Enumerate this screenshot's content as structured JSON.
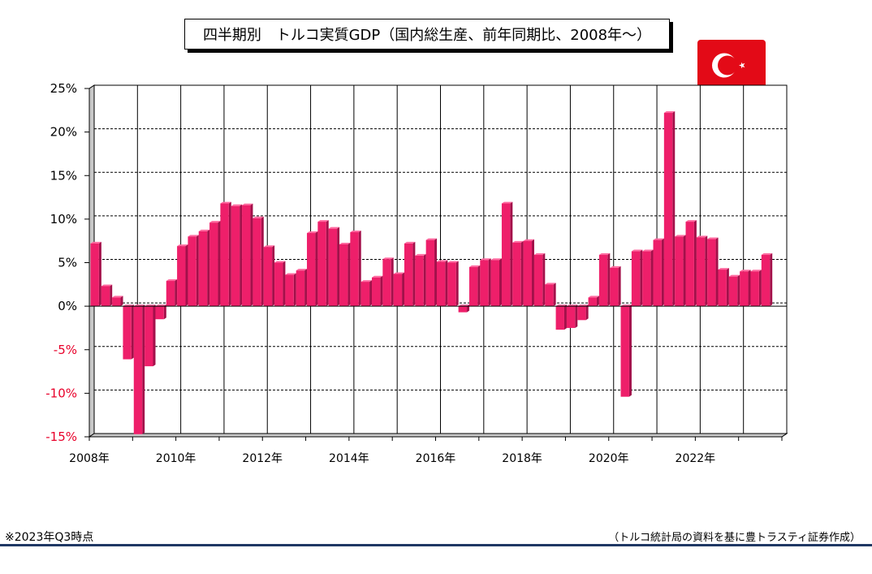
{
  "title": "四半期別　トルコ実質GDP（国内総生産、前年同期比、2008年～）",
  "flag_icon": "turkey-flag-icon",
  "note_left": "※2023年Q3時点",
  "note_right": "（トルコ統計局の資料を基に豊トラスティ証券作成）",
  "colors": {
    "bar": "#ee1f6a",
    "bar_side": "#a3104a",
    "bar_top": "#ff6aa0",
    "neg_label": "#e8002a",
    "flag": "#e30a17",
    "footer_line": "#1f3864"
  },
  "chart_data": {
    "type": "bar",
    "ylim": [
      -15,
      25
    ],
    "yticks": [
      25,
      20,
      15,
      10,
      5,
      0,
      -5,
      -10,
      -15
    ],
    "ytick_labels": [
      "25%",
      "20%",
      "15%",
      "10%",
      "5%",
      "0%",
      "-5%",
      "-10%",
      "-15%"
    ],
    "xtick_labels": [
      "2008年",
      "2010年",
      "2012年",
      "2014年",
      "2016年",
      "2018年",
      "2020年",
      "2022年"
    ],
    "grid": true,
    "series": [
      {
        "values": [
          7.2,
          2.3,
          1.0,
          -6.1,
          -14.7,
          -6.9,
          -1.5,
          2.9,
          6.9,
          8.0,
          8.6,
          9.6,
          11.8,
          11.5,
          11.6,
          10.1,
          6.8,
          5.0,
          3.6,
          4.1,
          8.4,
          9.7,
          8.9,
          7.1,
          8.5,
          2.8,
          3.3,
          5.4,
          3.7,
          7.2,
          5.8,
          7.6,
          5.1,
          5.0,
          -0.7,
          4.5,
          5.3,
          5.3,
          11.8,
          7.3,
          7.5,
          5.9,
          2.5,
          -2.7,
          -2.5,
          -1.6,
          1.0,
          5.9,
          4.4,
          -10.4,
          6.3,
          6.3,
          7.6,
          22.2,
          8.0,
          9.7,
          7.9,
          7.7,
          4.2,
          3.4,
          4.0,
          4.0,
          5.9
        ]
      }
    ]
  }
}
